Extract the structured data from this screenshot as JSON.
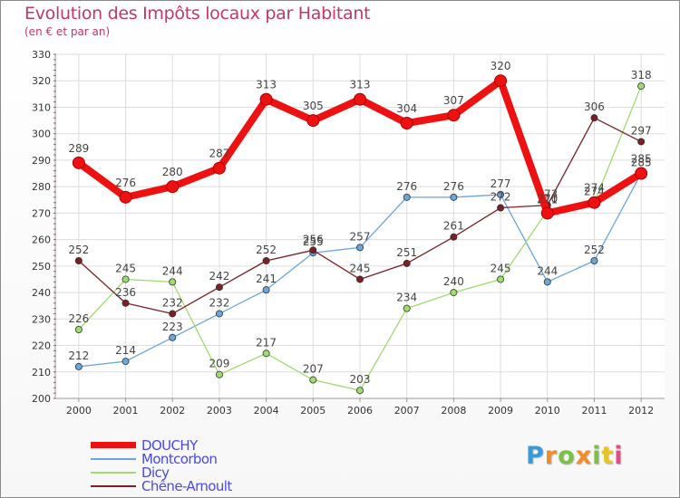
{
  "chart_data": {
    "type": "line",
    "title": "Evolution des Impôts locaux par Habitant",
    "subtitle": "(en € et par an)",
    "xlabel": "",
    "ylabel": "",
    "ylim": [
      200,
      330
    ],
    "yticks": [
      200,
      210,
      220,
      230,
      240,
      250,
      260,
      270,
      280,
      290,
      300,
      310,
      320,
      330
    ],
    "grid": true,
    "x": [
      "2000",
      "2001",
      "2002",
      "2003",
      "2004",
      "2005",
      "2006",
      "2007",
      "2008",
      "2009",
      "2010",
      "2011",
      "2012"
    ],
    "series": [
      {
        "name": "Montcorbon",
        "color": "#6aa6dc",
        "values": [
          212,
          214,
          223,
          232,
          241,
          255,
          257,
          276,
          276,
          277,
          244,
          252,
          285
        ]
      },
      {
        "name": "Dicy",
        "color": "#9edc6e",
        "values": [
          226,
          245,
          244,
          209,
          217,
          207,
          203,
          234,
          240,
          245,
          271,
          274,
          318
        ]
      },
      {
        "name": "Chêne-Arnoult",
        "color": "#7a1f24",
        "values": [
          252,
          236,
          232,
          242,
          252,
          256,
          245,
          251,
          261,
          272,
          273,
          306,
          297
        ]
      },
      {
        "name": "DOUCHY",
        "color": "#ee1111",
        "values": [
          289,
          276,
          280,
          287,
          313,
          305,
          313,
          304,
          307,
          320,
          270,
          274,
          285
        ]
      }
    ],
    "legend_order": [
      "DOUCHY",
      "Montcorbon",
      "Dicy",
      "Chêne-Arnoult"
    ]
  },
  "branding": {
    "logo_letters": [
      "P",
      "r",
      "o",
      "x",
      "i",
      "t",
      "i"
    ],
    "logo_colors": [
      "#3a9ad9",
      "#f28c28",
      "#7cc242",
      "#f28c28",
      "#7cc242",
      "#e8c326",
      "#e84a8a"
    ]
  }
}
